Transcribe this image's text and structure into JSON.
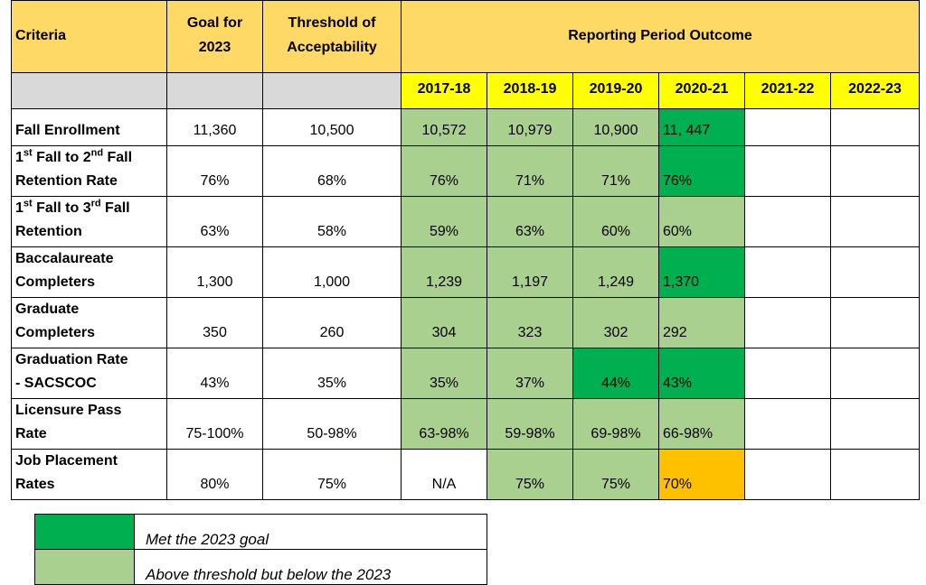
{
  "header": {
    "criteria": "Criteria",
    "goal": [
      "Goal for",
      "2023"
    ],
    "threshold": [
      "Threshold of",
      "Acceptability"
    ],
    "outcome": "Reporting Period Outcome"
  },
  "years": [
    "2017-18",
    "2018-19",
    "2019-20",
    "2020-21",
    "2021-22",
    "2022-23"
  ],
  "colors": {
    "header": "#ffd966",
    "subheader": "#d9d9d9",
    "year": "#ffff00"
  },
  "rows": [
    {
      "criteria": [
        [
          {
            "t": "Fall Enrollment"
          }
        ]
      ],
      "goal": "11,360",
      "threshold": "10,500",
      "outcomes": [
        "10,572",
        "10,979",
        "10,900",
        "11, 447"
      ],
      "fills": [
        "#a9d08e",
        "#a9d08e",
        "#a9d08e",
        "#00b050"
      ]
    },
    {
      "criteria": [
        [
          {
            "t": "1"
          },
          {
            "sup": "st"
          },
          {
            "t": " Fall to 2"
          },
          {
            "sup": "nd"
          },
          {
            "t": " Fall"
          }
        ],
        [
          {
            "t": "Retention Rate"
          }
        ]
      ],
      "goal": "76%",
      "threshold": "68%",
      "outcomes": [
        "76%",
        "71%",
        "71%",
        "76%"
      ],
      "fills": [
        "#a9d08e",
        "#a9d08e",
        "#a9d08e",
        "#00b050"
      ]
    },
    {
      "criteria": [
        [
          {
            "t": "1"
          },
          {
            "sup": "st"
          },
          {
            "t": " Fall to 3"
          },
          {
            "sup": "rd"
          },
          {
            "t": " Fall"
          }
        ],
        [
          {
            "t": "Retention"
          }
        ]
      ],
      "goal": "63%",
      "threshold": "58%",
      "outcomes": [
        "59%",
        "63%",
        "60%",
        "60%"
      ],
      "fills": [
        "#a9d08e",
        "#a9d08e",
        "#a9d08e",
        "#a9d08e"
      ]
    },
    {
      "criteria": [
        [
          {
            "t": "Baccalaureate"
          }
        ],
        [
          {
            "t": "Completers"
          }
        ]
      ],
      "goal": "1,300",
      "threshold": "1,000",
      "outcomes": [
        "1,239",
        "1,197",
        "1,249",
        "1,370"
      ],
      "fills": [
        "#a9d08e",
        "#a9d08e",
        "#a9d08e",
        "#00b050"
      ]
    },
    {
      "criteria": [
        [
          {
            "t": "Graduate"
          }
        ],
        [
          {
            "t": "Completers"
          }
        ]
      ],
      "goal": "350",
      "threshold": "260",
      "outcomes": [
        "304",
        "323",
        "302",
        "292"
      ],
      "fills": [
        "#a9d08e",
        "#a9d08e",
        "#a9d08e",
        "#a9d08e"
      ]
    },
    {
      "criteria": [
        [
          {
            "t": "Graduation Rate"
          }
        ],
        [
          {
            "t": "- SACSCOC"
          }
        ]
      ],
      "goal": "43%",
      "threshold": "35%",
      "outcomes": [
        "35%",
        "37%",
        "44%",
        "43%"
      ],
      "fills": [
        "#a9d08e",
        "#a9d08e",
        "#00b050",
        "#00b050"
      ]
    },
    {
      "criteria": [
        [
          {
            "t": "Licensure Pass"
          }
        ],
        [
          {
            "t": "Rate"
          }
        ]
      ],
      "goal": "75-100%",
      "threshold": "50-98%",
      "outcomes": [
        "63-98%",
        "59-98%",
        "69-98%",
        "66-98%"
      ],
      "fills": [
        "#a9d08e",
        "#a9d08e",
        "#a9d08e",
        "#a9d08e"
      ]
    },
    {
      "criteria": [
        [
          {
            "t": "Job Placement"
          }
        ],
        [
          {
            "t": "Rates"
          }
        ]
      ],
      "goal": "80%",
      "threshold": "75%",
      "outcomes": [
        "N/A",
        "75%",
        "75%",
        "70%"
      ],
      "fills": [
        null,
        "#a9d08e",
        "#a9d08e",
        "#ffc000"
      ]
    }
  ],
  "legend": [
    {
      "color": "#00b050",
      "label": "Met the 2023 goal"
    },
    {
      "color": "#a9d08e",
      "label": "Above threshold but below the 2023"
    }
  ]
}
